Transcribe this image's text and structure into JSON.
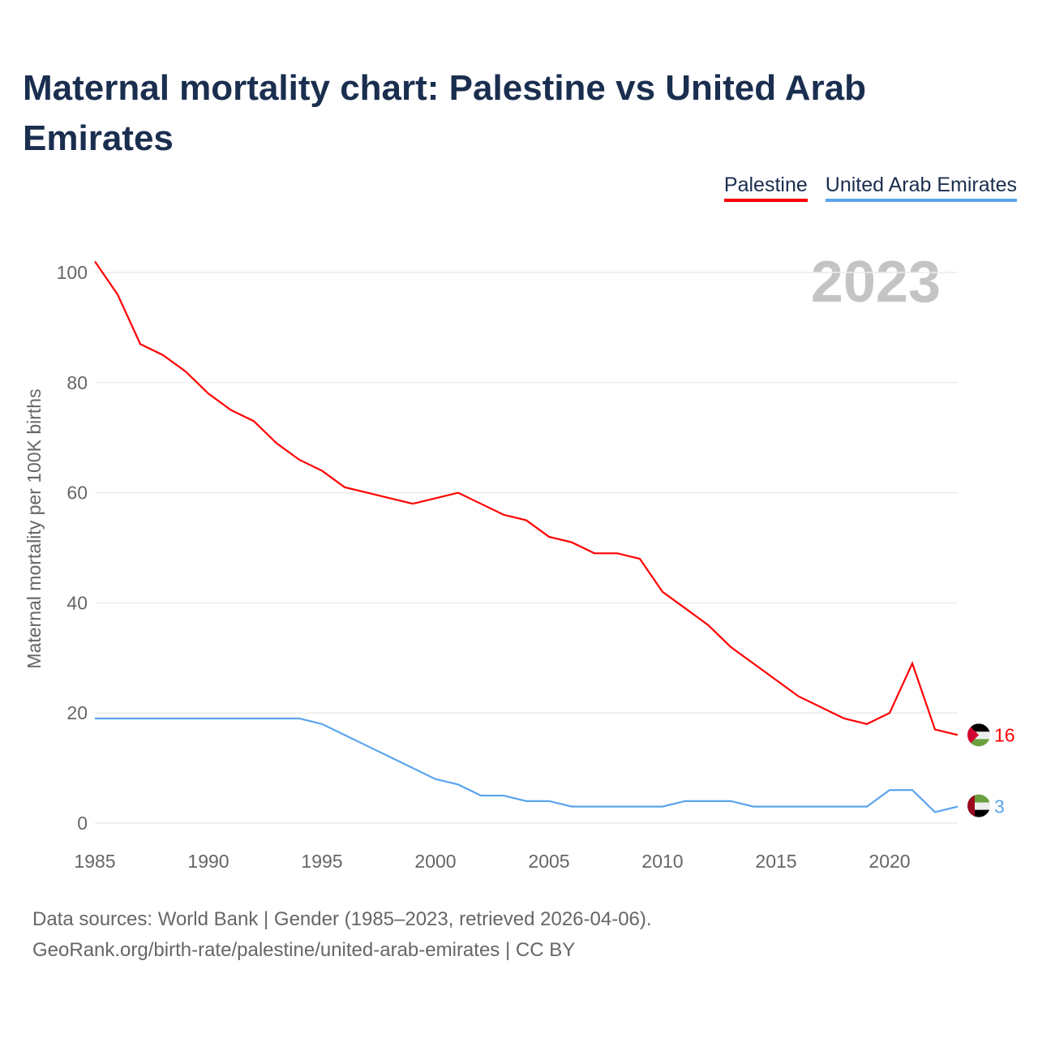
{
  "title": "Maternal mortality chart: Palestine vs United Arab Emirates",
  "footer": {
    "line1": "Data sources: World Bank | Gender (1985–2023, retrieved 2026-04-06).",
    "line2": "GeoRank.org/birth-rate/palestine/united-arab-emirates | CC BY"
  },
  "chart_data": {
    "type": "line",
    "title": "Maternal mortality chart: Palestine vs United Arab Emirates",
    "ylabel": "Maternal mortality per 100K births",
    "xlabel": "",
    "year_label": "2023",
    "ylim": [
      0,
      100
    ],
    "xlim": [
      1985,
      2023
    ],
    "yticks": [
      0,
      20,
      40,
      60,
      80,
      100
    ],
    "xticks": [
      1985,
      1990,
      1995,
      2000,
      2005,
      2010,
      2015,
      2020
    ],
    "grid": true,
    "legend_position": "top-right",
    "x": [
      1985,
      1986,
      1987,
      1988,
      1989,
      1990,
      1991,
      1992,
      1993,
      1994,
      1995,
      1996,
      1997,
      1998,
      1999,
      2000,
      2001,
      2002,
      2003,
      2004,
      2005,
      2006,
      2007,
      2008,
      2009,
      2010,
      2011,
      2012,
      2013,
      2014,
      2015,
      2016,
      2017,
      2018,
      2019,
      2020,
      2021,
      2022,
      2023
    ],
    "series": [
      {
        "name": "Palestine",
        "color": "#ff0000",
        "end_label": "16",
        "values": [
          102,
          96,
          87,
          85,
          82,
          78,
          75,
          73,
          69,
          66,
          64,
          61,
          60,
          59,
          58,
          59,
          60,
          58,
          56,
          55,
          52,
          51,
          49,
          49,
          48,
          42,
          39,
          36,
          32,
          29,
          26,
          23,
          21,
          19,
          18,
          20,
          29,
          17,
          16
        ]
      },
      {
        "name": "United Arab Emirates",
        "color": "#5aa5ee",
        "end_label": "3",
        "values": [
          19,
          19,
          19,
          19,
          19,
          19,
          19,
          19,
          19,
          19,
          18,
          16,
          14,
          12,
          10,
          8,
          7,
          5,
          5,
          4,
          4,
          3,
          3,
          3,
          3,
          3,
          4,
          4,
          4,
          3,
          3,
          3,
          3,
          3,
          3,
          6,
          6,
          2,
          3
        ]
      }
    ]
  }
}
